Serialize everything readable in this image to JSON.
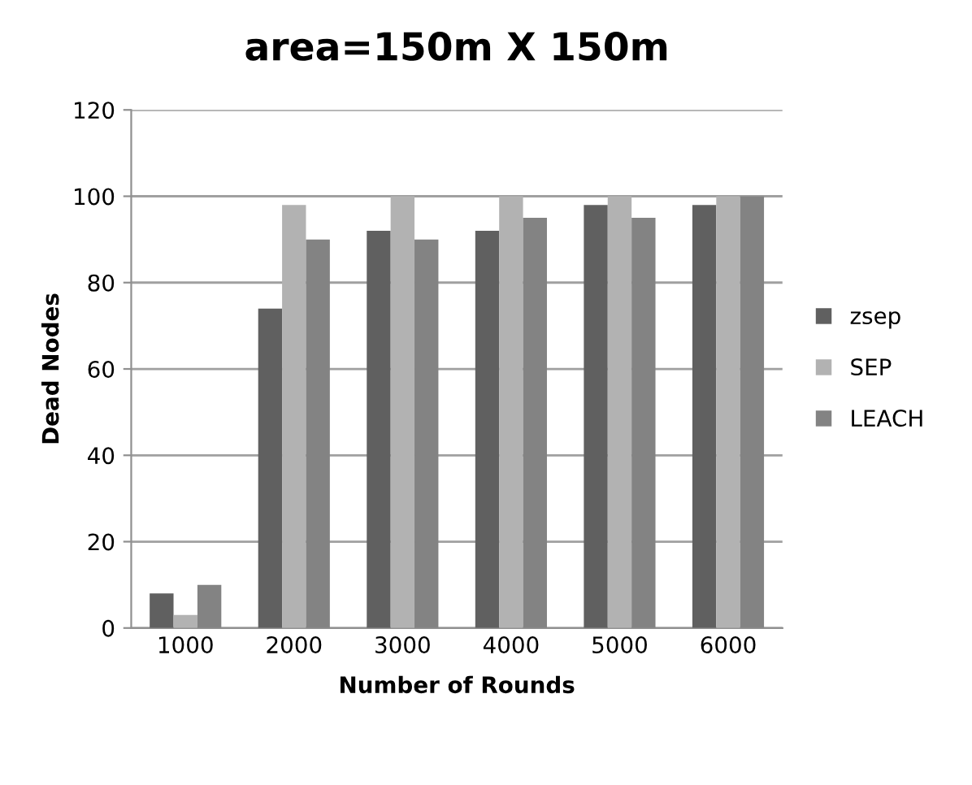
{
  "chart_data": {
    "type": "bar",
    "title": "area=150m X 150m",
    "xlabel": "Number of Rounds",
    "ylabel": "Dead Nodes",
    "categories": [
      "1000",
      "2000",
      "3000",
      "4000",
      "5000",
      "6000"
    ],
    "series": [
      {
        "name": "zsep",
        "color": "#606060",
        "values": [
          8,
          74,
          92,
          92,
          98,
          98
        ]
      },
      {
        "name": "SEP",
        "color": "#b2b2b2",
        "values": [
          3,
          98,
          100,
          100,
          100,
          100
        ]
      },
      {
        "name": "LEACH",
        "color": "#838383",
        "values": [
          10,
          90,
          90,
          95,
          95,
          100
        ]
      }
    ],
    "ylim": [
      0,
      120
    ],
    "yticks": [
      0,
      20,
      40,
      60,
      80,
      100,
      120
    ],
    "grid": "y",
    "legend": "right"
  }
}
